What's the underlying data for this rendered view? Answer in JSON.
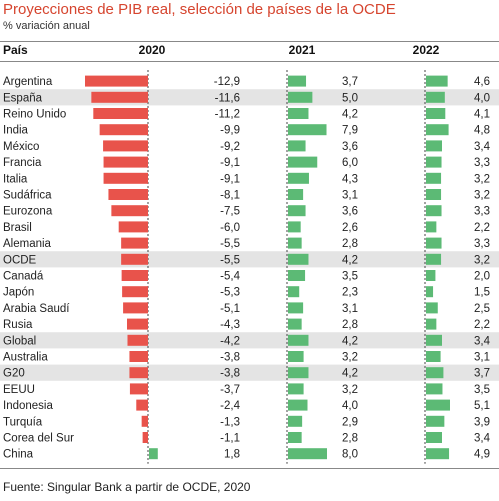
{
  "title": "Proyecciones de PIB real, selección de países de la OCDE",
  "subtitle": "% variación anual",
  "header": {
    "country": "País",
    "y2020": "2020",
    "y2021": "2021",
    "y2022": "2022"
  },
  "source": "Fuente: Singular Bank a partir de OCDE, 2020",
  "colors": {
    "negative": "#e8534b",
    "positive": "#5cba75",
    "highlight_row": "#e4e4e4",
    "title": "#d6452f"
  },
  "chart_data": {
    "type": "bar",
    "categories": [
      "Argentina",
      "España",
      "Reino Unido",
      "India",
      "México",
      "Francia",
      "Italia",
      "Sudáfrica",
      "Eurozona",
      "Brasil",
      "Alemania",
      "OCDE",
      "Canadá",
      "Japón",
      "Arabia Saudí",
      "Rusia",
      "Global",
      "Australia",
      "G20",
      "EEUU",
      "Indonesia",
      "Turquía",
      "Corea del Sur",
      "China"
    ],
    "highlighted": [
      "España",
      "OCDE",
      "Global",
      "G20"
    ],
    "series": [
      {
        "name": "2020",
        "values": [
          -12.9,
          -11.6,
          -11.2,
          -9.9,
          -9.2,
          -9.1,
          -9.1,
          -8.1,
          -7.5,
          -6.0,
          -5.5,
          -5.5,
          -5.4,
          -5.3,
          -5.1,
          -4.3,
          -4.2,
          -3.8,
          -3.8,
          -3.7,
          -2.4,
          -1.3,
          -1.1,
          1.8
        ],
        "labels": [
          "-12,9",
          "-11,6",
          "-11,2",
          "-9,9",
          "-9,2",
          "-9,1",
          "-9,1",
          "-8,1",
          "-7,5",
          "-6,0",
          "-5,5",
          "-5,5",
          "-5,4",
          "-5,3",
          "-5,1",
          "-4,3",
          "-4,2",
          "-3,8",
          "-3,8",
          "-3,7",
          "-2,4",
          "-1,3",
          "-1,1",
          "1,8"
        ]
      },
      {
        "name": "2021",
        "values": [
          3.7,
          5.0,
          4.2,
          7.9,
          3.6,
          6.0,
          4.3,
          3.1,
          3.6,
          2.6,
          2.8,
          4.2,
          3.5,
          2.3,
          3.1,
          2.8,
          4.2,
          3.2,
          4.2,
          3.2,
          4.0,
          2.9,
          2.8,
          8.0
        ],
        "labels": [
          "3,7",
          "5,0",
          "4,2",
          "7,9",
          "3,6",
          "6,0",
          "4,3",
          "3,1",
          "3,6",
          "2,6",
          "2,8",
          "4,2",
          "3,5",
          "2,3",
          "3,1",
          "2,8",
          "4,2",
          "3,2",
          "4,2",
          "3,2",
          "4,0",
          "2,9",
          "2,8",
          "8,0"
        ]
      },
      {
        "name": "2022",
        "values": [
          4.6,
          4.0,
          4.1,
          4.8,
          3.4,
          3.3,
          3.2,
          3.2,
          3.3,
          2.2,
          3.3,
          3.2,
          2.0,
          1.5,
          2.5,
          2.2,
          3.4,
          3.1,
          3.7,
          3.5,
          5.1,
          3.9,
          3.4,
          4.9
        ],
        "labels": [
          "4,6",
          "4,0",
          "4,1",
          "4,8",
          "3,4",
          "3,3",
          "3,2",
          "3,2",
          "3,3",
          "2,2",
          "3,3",
          "3,2",
          "2,0",
          "1,5",
          "2,5",
          "2,2",
          "3,4",
          "3,1",
          "3,7",
          "3,5",
          "5,1",
          "3,9",
          "3,4",
          "4,9"
        ]
      }
    ]
  }
}
